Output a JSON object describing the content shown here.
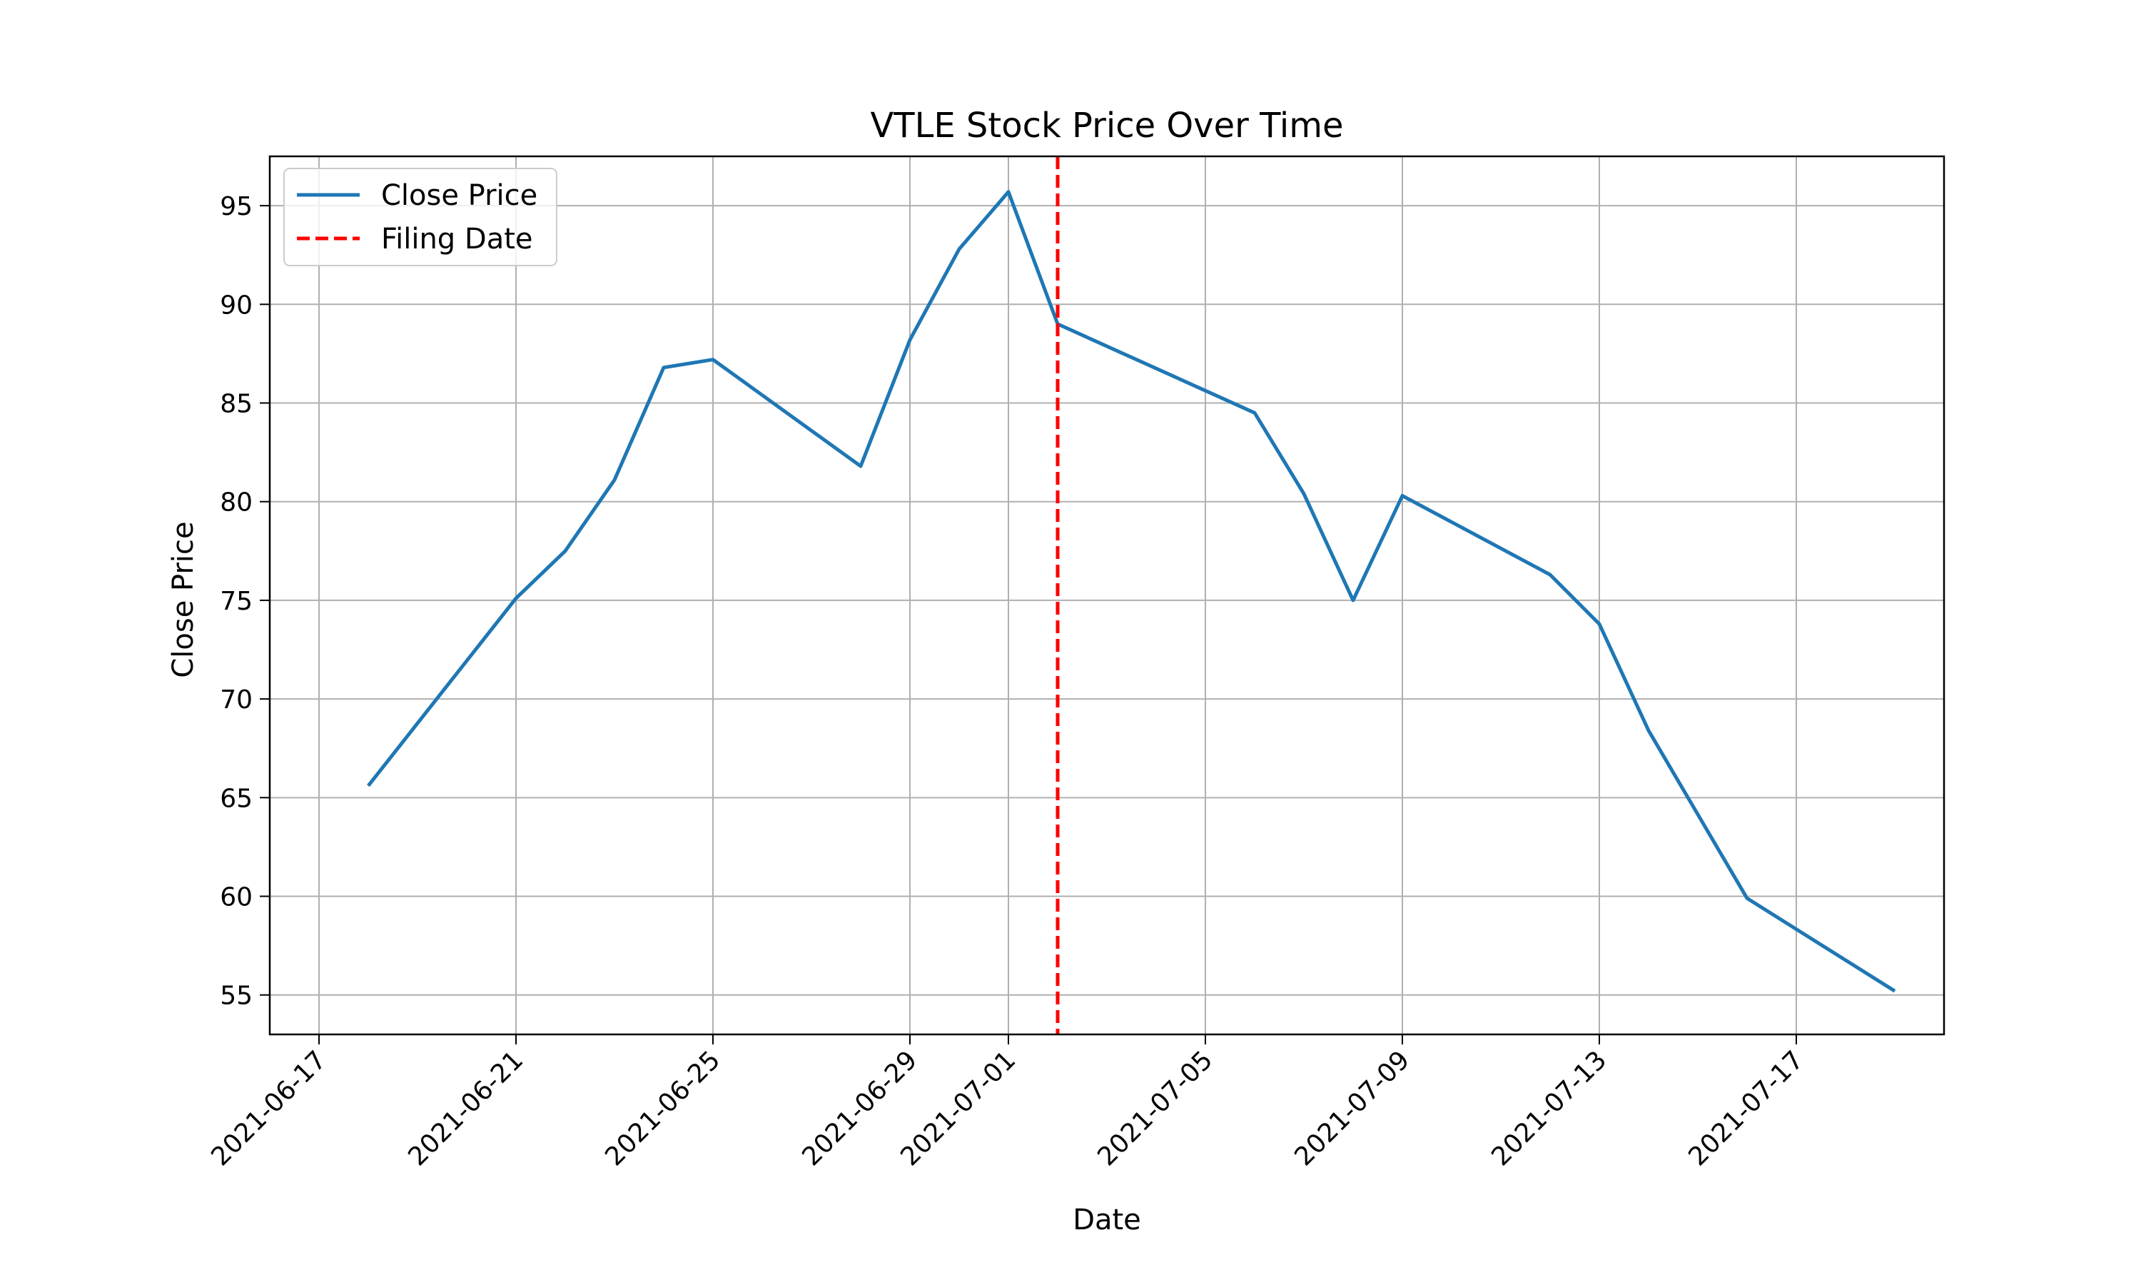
{
  "chart_data": {
    "type": "line",
    "title": "VTLE Stock Price Over Time",
    "xlabel": "Date",
    "ylabel": "Close Price",
    "x_axis_type": "date",
    "xlim": [
      "2021-06-16",
      "2021-07-20"
    ],
    "ylim": [
      53,
      97.5
    ],
    "x_ticks": [
      "2021-06-17",
      "2021-06-21",
      "2021-06-25",
      "2021-06-29",
      "2021-07-01",
      "2021-07-05",
      "2021-07-09",
      "2021-07-13",
      "2021-07-17"
    ],
    "y_ticks": [
      55,
      60,
      65,
      70,
      75,
      80,
      85,
      90,
      95
    ],
    "grid": true,
    "legend_position": "top-left",
    "series": [
      {
        "name": "Close Price",
        "color": "#1f77b4",
        "style": "solid",
        "points": [
          {
            "x": "2021-06-18",
            "y": 65.6
          },
          {
            "x": "2021-06-21",
            "y": 75.1
          },
          {
            "x": "2021-06-22",
            "y": 77.5
          },
          {
            "x": "2021-06-23",
            "y": 81.1
          },
          {
            "x": "2021-06-24",
            "y": 86.8
          },
          {
            "x": "2021-06-25",
            "y": 87.2
          },
          {
            "x": "2021-06-28",
            "y": 81.8
          },
          {
            "x": "2021-06-29",
            "y": 88.2
          },
          {
            "x": "2021-06-30",
            "y": 92.8
          },
          {
            "x": "2021-07-01",
            "y": 95.7
          },
          {
            "x": "2021-07-02",
            "y": 89.0
          },
          {
            "x": "2021-07-06",
            "y": 84.5
          },
          {
            "x": "2021-07-07",
            "y": 80.4
          },
          {
            "x": "2021-07-08",
            "y": 75.0
          },
          {
            "x": "2021-07-09",
            "y": 80.3
          },
          {
            "x": "2021-07-12",
            "y": 76.3
          },
          {
            "x": "2021-07-13",
            "y": 73.8
          },
          {
            "x": "2021-07-14",
            "y": 68.4
          },
          {
            "x": "2021-07-16",
            "y": 59.9
          },
          {
            "x": "2021-07-19",
            "y": 55.2
          }
        ]
      }
    ],
    "vertical_lines": [
      {
        "name": "Filing Date",
        "x": "2021-07-02",
        "color": "#ff0000",
        "style": "dashed"
      }
    ]
  }
}
